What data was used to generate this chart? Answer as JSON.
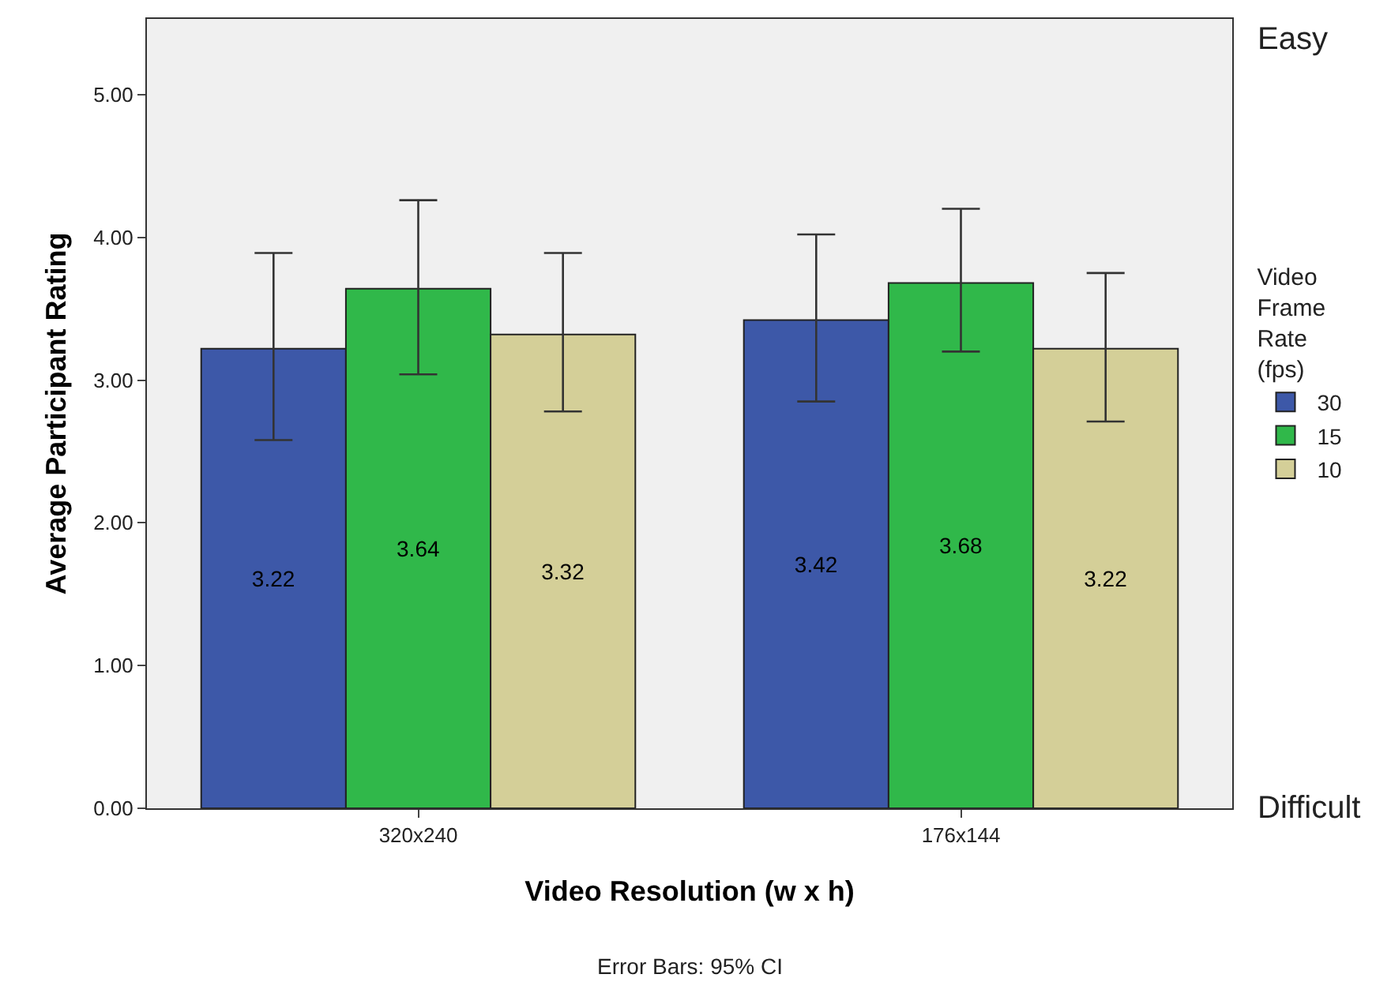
{
  "chart_data": {
    "type": "bar",
    "xlabel": "Video Resolution (w x h)",
    "ylabel": "Average Participant Rating",
    "legend_title": "Video Frame Rate (fps)",
    "categories": [
      "320x240",
      "176x144"
    ],
    "series": [
      {
        "name": "30",
        "color": "#3d58a8",
        "values": [
          3.22,
          3.42
        ],
        "errors": [
          [
            2.58,
            3.89
          ],
          [
            2.85,
            4.02
          ]
        ]
      },
      {
        "name": "15",
        "color": "#30b84a",
        "values": [
          3.64,
          3.68
        ],
        "errors": [
          [
            3.04,
            4.26
          ],
          [
            3.2,
            4.2
          ]
        ]
      },
      {
        "name": "10",
        "color": "#d4cf98",
        "values": [
          3.32,
          3.22
        ],
        "errors": [
          [
            2.78,
            3.89
          ],
          [
            2.71,
            3.75
          ]
        ]
      }
    ],
    "ylim": [
      0,
      5.53
    ],
    "yticks": [
      {
        "value": 0,
        "label": "0.00"
      },
      {
        "value": 1,
        "label": "1.00"
      },
      {
        "value": 2,
        "label": "2.00"
      },
      {
        "value": 3,
        "label": "3.00"
      },
      {
        "value": 4,
        "label": "4.00"
      },
      {
        "value": 5,
        "label": "5.00"
      }
    ],
    "data_labels": true,
    "grid": false,
    "legend": "right",
    "annotations": [
      "Easy",
      "Difficult",
      "Error Bars: 95% CI"
    ]
  }
}
